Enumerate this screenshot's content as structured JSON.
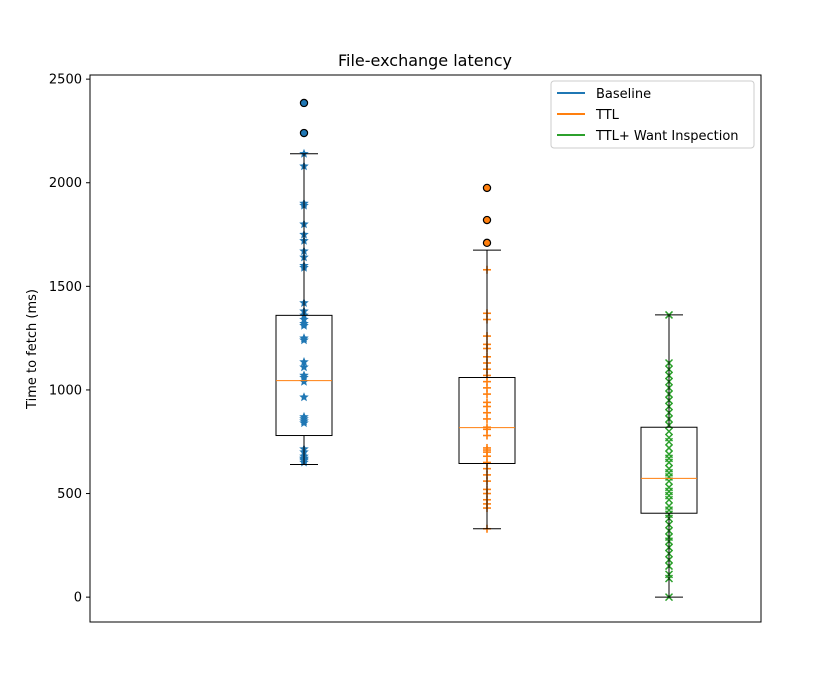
{
  "chart_data": {
    "type": "box",
    "title": "File-exchange latency",
    "xlabel": "",
    "ylabel": "Time to fetch (ms)",
    "ylim": [
      -120,
      2520
    ],
    "yticks": [
      0,
      500,
      1000,
      1500,
      2000,
      2500
    ],
    "grid": false,
    "legend_position": "top-right",
    "series": [
      {
        "name": "Baseline",
        "color": "#1f77b4",
        "marker": "star",
        "box": {
          "whisker_low": 640,
          "q1": 780,
          "median": 1045,
          "q3": 1360,
          "whisker_high": 2140
        },
        "outliers": [
          2240,
          2385
        ],
        "points": [
          650,
          660,
          665,
          670,
          680,
          700,
          715,
          840,
          850,
          860,
          870,
          965,
          1040,
          1060,
          1070,
          1110,
          1135,
          1240,
          1250,
          1310,
          1320,
          1340,
          1360,
          1380,
          1420,
          1590,
          1600,
          1640,
          1670,
          1720,
          1750,
          1800,
          1890,
          1900,
          2080,
          2140
        ]
      },
      {
        "name": "TTL",
        "color": "#ff7f0e",
        "marker": "plus-square",
        "box": {
          "whisker_low": 330,
          "q1": 645,
          "median": 818,
          "q3": 1060,
          "whisker_high": 1675
        },
        "outliers": [
          1710,
          1820,
          1975
        ],
        "points": [
          330,
          430,
          450,
          470,
          500,
          520,
          560,
          590,
          620,
          650,
          680,
          700,
          710,
          720,
          780,
          810,
          820,
          860,
          890,
          920,
          940,
          980,
          1010,
          1040,
          1070,
          1100,
          1130,
          1160,
          1200,
          1220,
          1260,
          1340,
          1370,
          1580
        ]
      },
      {
        "name": "TTL+ Want Inspection",
        "color": "#2ca02c",
        "marker": "x-diamond",
        "box": {
          "whisker_low": 0,
          "q1": 405,
          "median": 573,
          "q3": 820,
          "whisker_high": 1362
        },
        "outliers": [],
        "points": [
          0,
          90,
          110,
          150,
          180,
          210,
          240,
          270,
          290,
          320,
          350,
          380,
          400,
          420,
          440,
          470,
          490,
          510,
          530,
          560,
          580,
          600,
          620,
          650,
          670,
          690,
          720,
          750,
          770,
          800,
          830,
          860,
          890,
          920,
          950,
          980,
          1010,
          1040,
          1070,
          1100,
          1130,
          1362
        ]
      }
    ]
  }
}
